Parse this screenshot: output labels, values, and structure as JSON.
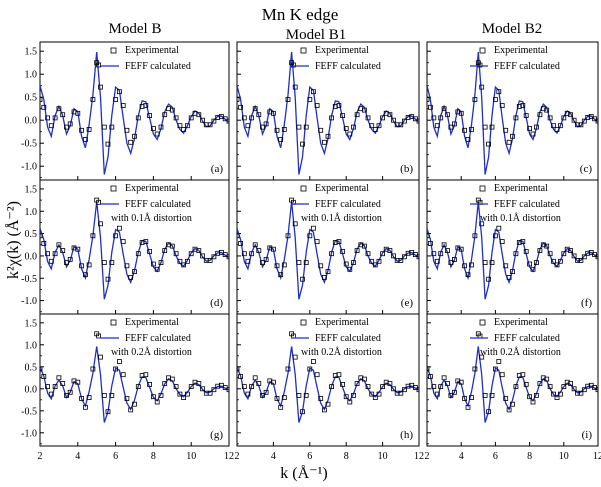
{
  "figure": {
    "title": "Mn K edge",
    "xlabel": "k (Å⁻¹)",
    "ylabel": "k²χ(k) (Å⁻²)",
    "colors": {
      "experimental": "#000000",
      "calculated": "#1f2fc8"
    }
  },
  "chart_data": {
    "type": "line",
    "x_range": [
      2,
      12
    ],
    "y_range": [
      -1.3,
      1.7
    ],
    "x_ticks": [
      2,
      4,
      6,
      8,
      10,
      12
    ],
    "y_ticks": [
      -1.0,
      -0.5,
      0.0,
      0.5,
      1.0,
      1.5
    ],
    "columns": [
      "Model B",
      "Model B1",
      "Model B2"
    ],
    "panels": [
      {
        "id": "a",
        "col": 0,
        "row": 0,
        "label": "(a)",
        "legend": {
          "exp": "Experimental",
          "calc": "FEFF calculated",
          "note": ""
        },
        "calc_scale": 1.0
      },
      {
        "id": "b",
        "col": 1,
        "row": 0,
        "label": "(b)",
        "legend": {
          "exp": "Experimental",
          "calc": "FEFF calculated",
          "note": ""
        },
        "calc_scale": 1.0
      },
      {
        "id": "c",
        "col": 2,
        "row": 0,
        "label": "(c)",
        "legend": {
          "exp": "Experimental",
          "calc": "FEFF calculated",
          "note": ""
        },
        "calc_scale": 1.0
      },
      {
        "id": "d",
        "col": 0,
        "row": 1,
        "label": "(d)",
        "legend": {
          "exp": "Experimental",
          "calc": "FEFF calculated",
          "note": "with 0.1Å distortion"
        },
        "calc_scale": 0.82
      },
      {
        "id": "e",
        "col": 1,
        "row": 1,
        "label": "(e)",
        "legend": {
          "exp": "Experimental",
          "calc": "FEFF calculated",
          "note": "with 0.1Å distortion"
        },
        "calc_scale": 0.82
      },
      {
        "id": "f",
        "col": 2,
        "row": 1,
        "label": "(f)",
        "legend": {
          "exp": "Experimental",
          "calc": "FEFF calculated",
          "note": "with 0.1Å distortion"
        },
        "calc_scale": 0.82
      },
      {
        "id": "g",
        "col": 0,
        "row": 2,
        "label": "(g)",
        "legend": {
          "exp": "Experimental",
          "calc": "FEFF calculated",
          "note": "with 0.2Å distortion"
        },
        "calc_scale": 0.65
      },
      {
        "id": "h",
        "col": 1,
        "row": 2,
        "label": "(h)",
        "legend": {
          "exp": "Experimental",
          "calc": "FEFF calculated",
          "note": "with 0.2Å distortion"
        },
        "calc_scale": 0.65
      },
      {
        "id": "i",
        "col": 2,
        "row": 2,
        "label": "(i)",
        "legend": {
          "exp": "Experimental",
          "calc": "FEFF calculated",
          "note": "with 0.2Å distortion"
        },
        "calc_scale": 0.65
      }
    ],
    "experimental": {
      "name": "Experimental",
      "x": [
        2.0,
        2.2,
        2.4,
        2.6,
        2.8,
        3.0,
        3.2,
        3.4,
        3.6,
        3.8,
        4.0,
        4.2,
        4.4,
        4.6,
        4.8,
        5.0,
        5.1,
        5.2,
        5.4,
        5.6,
        5.8,
        6.0,
        6.2,
        6.4,
        6.6,
        6.8,
        7.0,
        7.2,
        7.4,
        7.6,
        7.8,
        8.0,
        8.2,
        8.4,
        8.6,
        8.8,
        9.0,
        9.2,
        9.4,
        9.6,
        9.8,
        10.0,
        10.2,
        10.4,
        10.6,
        10.8,
        11.0,
        11.2,
        11.4,
        11.6,
        11.8,
        12.0
      ],
      "y": [
        0.45,
        0.28,
        0.05,
        -0.12,
        0.05,
        0.25,
        0.12,
        -0.15,
        -0.08,
        0.18,
        0.15,
        -0.22,
        -0.42,
        -0.2,
        0.45,
        1.25,
        1.2,
        0.72,
        -0.15,
        -0.52,
        -0.15,
        0.45,
        0.62,
        0.32,
        -0.22,
        -0.48,
        -0.35,
        0.05,
        0.3,
        0.32,
        0.1,
        -0.18,
        -0.3,
        -0.15,
        0.12,
        0.25,
        0.22,
        0.05,
        -0.12,
        -0.2,
        -0.12,
        0.05,
        0.15,
        0.12,
        0.0,
        -0.1,
        -0.1,
        -0.02,
        0.06,
        0.08,
        0.03,
        -0.02
      ]
    },
    "calculated": {
      "name": "FEFF calculated",
      "x": [
        2.0,
        2.2,
        2.4,
        2.6,
        2.8,
        3.0,
        3.2,
        3.4,
        3.6,
        3.8,
        4.0,
        4.2,
        4.4,
        4.6,
        4.8,
        5.0,
        5.2,
        5.4,
        5.6,
        5.8,
        6.0,
        6.2,
        6.4,
        6.6,
        6.8,
        7.0,
        7.2,
        7.4,
        7.6,
        7.8,
        8.0,
        8.2,
        8.4,
        8.6,
        8.8,
        9.0,
        9.2,
        9.4,
        9.6,
        9.8,
        10.0,
        10.2,
        10.4,
        10.6,
        10.8,
        11.0,
        11.2,
        11.4,
        11.6,
        11.8,
        12.0
      ],
      "y": [
        0.75,
        0.45,
        -0.15,
        -0.35,
        0.1,
        0.3,
        0.1,
        -0.3,
        -0.12,
        0.25,
        0.18,
        -0.35,
        -0.6,
        -0.1,
        0.55,
        1.48,
        0.5,
        -1.18,
        -0.8,
        0.1,
        0.72,
        0.65,
        0.05,
        -0.5,
        -0.72,
        -0.4,
        0.1,
        0.42,
        0.4,
        0.05,
        -0.3,
        -0.42,
        -0.18,
        0.18,
        0.35,
        0.28,
        0.0,
        -0.2,
        -0.28,
        -0.12,
        0.08,
        0.2,
        0.15,
        -0.02,
        -0.14,
        -0.12,
        0.0,
        0.08,
        0.09,
        0.02,
        -0.04
      ]
    }
  }
}
